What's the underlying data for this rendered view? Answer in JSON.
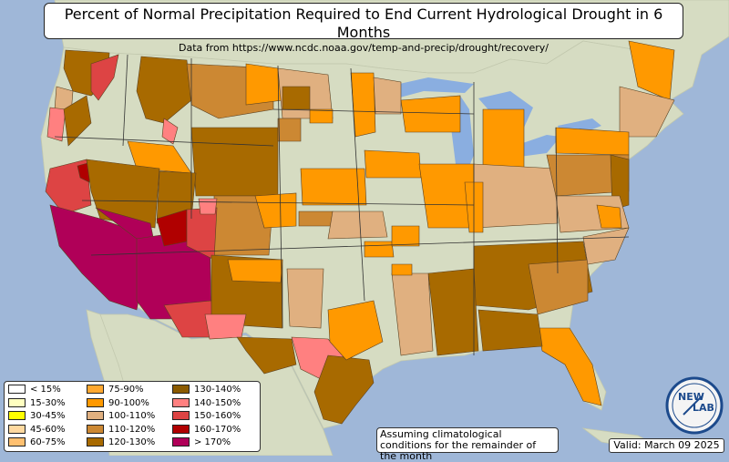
{
  "title": "Percent of Normal Precipitation Required to End Current Hydrological Drought in 6 Months",
  "subtitle": "Data from https://www.ncdc.noaa.gov/temp-and-precip/drought/recovery/",
  "legend": {
    "items": [
      {
        "label": "< 15%",
        "color": "#ffffff"
      },
      {
        "label": "15-30%",
        "color": "#ffffc0"
      },
      {
        "label": "30-45%",
        "color": "#ffff00"
      },
      {
        "label": "45-60%",
        "color": "#ffd9a0"
      },
      {
        "label": "60-75%",
        "color": "#ffc070"
      },
      {
        "label": "75-90%",
        "color": "#ffa830"
      },
      {
        "label": "90-100%",
        "color": "#ff9900"
      },
      {
        "label": "100-110%",
        "color": "#e0b080"
      },
      {
        "label": "110-120%",
        "color": "#cc8833"
      },
      {
        "label": "120-130%",
        "color": "#a86a00"
      },
      {
        "label": "130-140%",
        "color": "#8b5a00"
      },
      {
        "label": "140-150%",
        "color": "#ff8080"
      },
      {
        "label": "150-160%",
        "color": "#dd4444"
      },
      {
        "label": "160-170%",
        "color": "#b00000"
      },
      {
        "label": "> 170%",
        "color": "#b00058"
      }
    ]
  },
  "note": "Assuming climatological conditions for the remainder of the month",
  "valid": "Valid: March 09 2025",
  "logo": {
    "line1": "NEW",
    "line2": "LAB"
  },
  "colors": {
    "ocean": "#9fb7d8",
    "land": "#d6dcc2",
    "lakes": "#8aaee0"
  }
}
